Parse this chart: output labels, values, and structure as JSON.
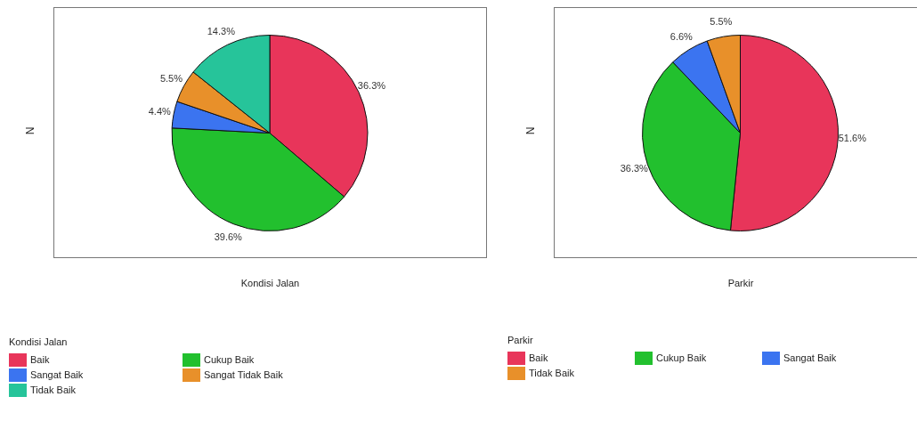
{
  "chart_data": [
    {
      "type": "pie",
      "xlabel": "Kondisi Jalan",
      "ylabel": "N",
      "legend_title": "Kondisi Jalan",
      "legend": "bottom",
      "categories": [
        "Baik",
        "Cukup Baik",
        "Sangat Baik",
        "Sangat Tidak Baik",
        "Tidak Baik"
      ],
      "values": [
        36.3,
        39.6,
        4.4,
        5.5,
        14.3
      ],
      "value_labels": [
        "36.3%",
        "39.6%",
        "4.4%",
        "5.5%",
        "14.3%"
      ],
      "colors": [
        "#e8355a",
        "#22c02e",
        "#3b74f0",
        "#e8902a",
        "#26c49a"
      ]
    },
    {
      "type": "pie",
      "xlabel": "Parkir",
      "ylabel": "N",
      "legend_title": "Parkir",
      "legend": "bottom",
      "categories": [
        "Baik",
        "Cukup Baik",
        "Sangat Baik",
        "Tidak Baik"
      ],
      "values": [
        51.6,
        36.3,
        6.6,
        5.5
      ],
      "value_labels": [
        "51.6%",
        "36.3%",
        "6.6%",
        "5.5%"
      ],
      "colors": [
        "#e8355a",
        "#22c02e",
        "#3b74f0",
        "#e8902a"
      ]
    }
  ]
}
